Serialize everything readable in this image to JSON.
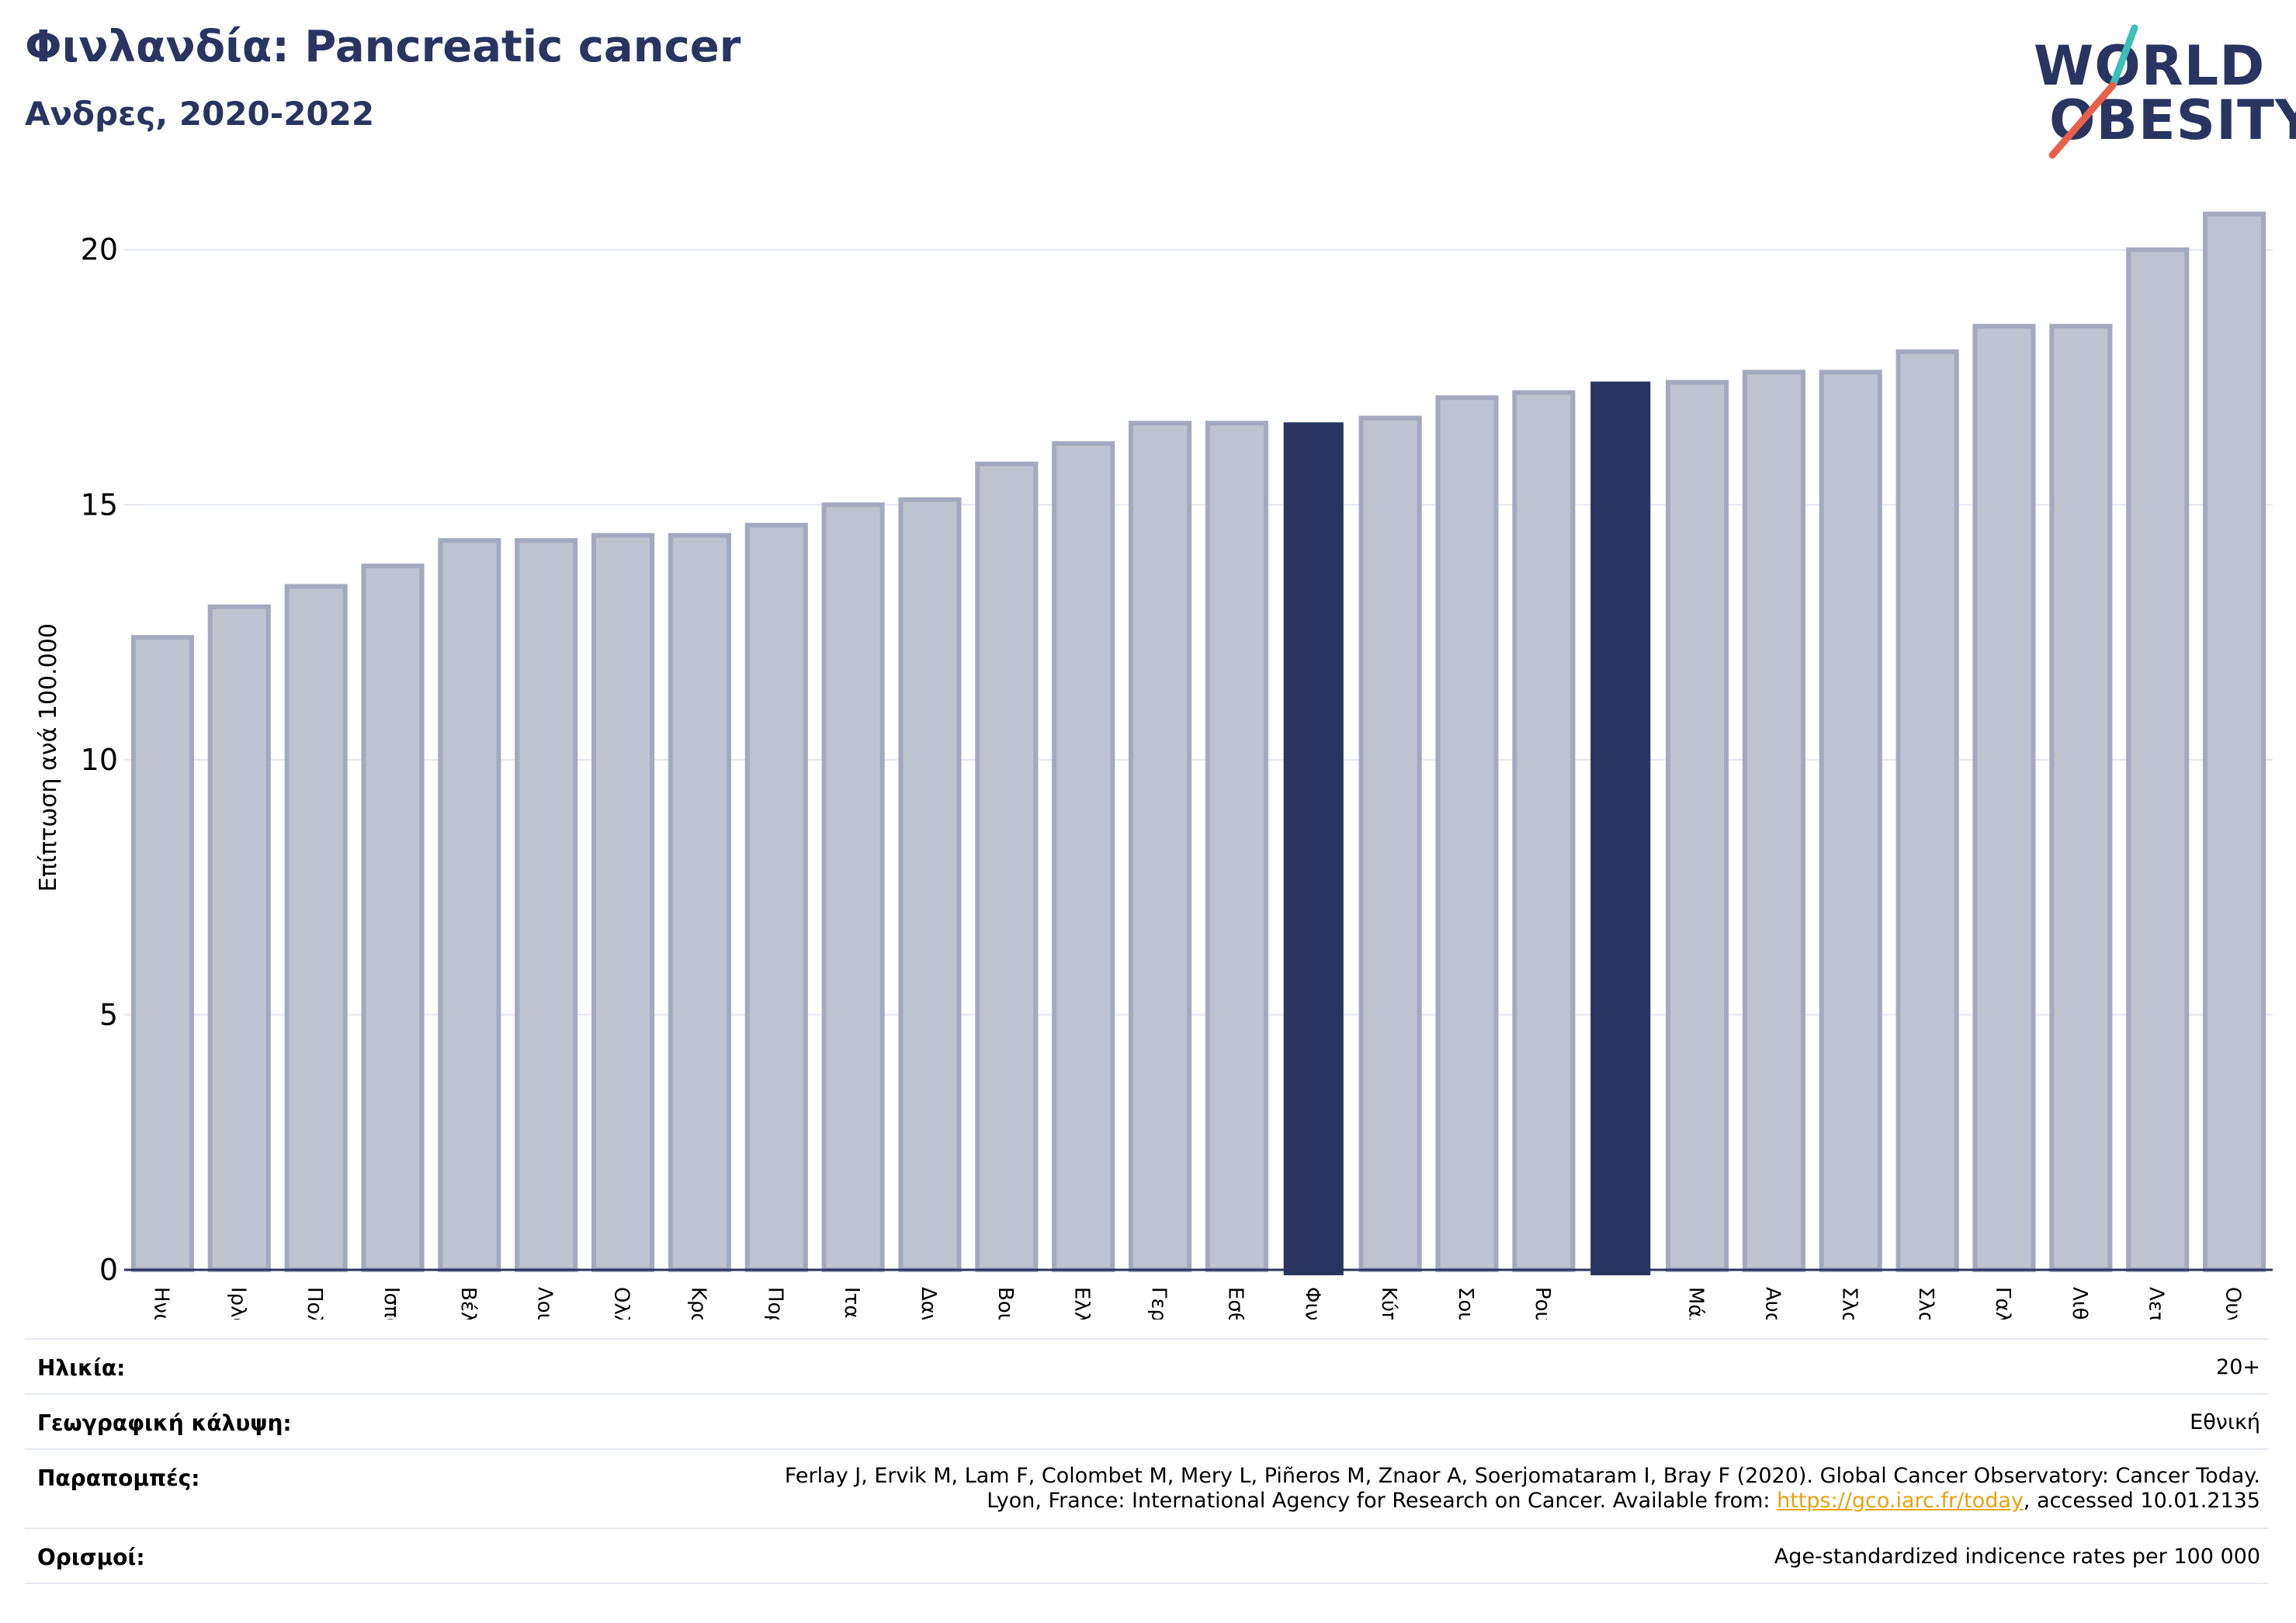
{
  "header": {
    "title": "Φινλανδία: Pancreatic cancer",
    "subtitle": "Ανδρες, 2020-2022"
  },
  "logo": {
    "line1": "WORLD",
    "line2": "OBESITY",
    "slash_colors": [
      "#3bbfb8",
      "#e8604c"
    ]
  },
  "colors": {
    "highlight": "#293560",
    "bar": "#bfc2cf",
    "bar_edge": "#a4a9bf",
    "title": "#293560",
    "link": "#e8a20c"
  },
  "chart_data": {
    "type": "bar",
    "ylabel": "Επίπτωση ανά 100.000",
    "ylim": [
      0,
      21
    ],
    "yticks": [
      0,
      5,
      10,
      15,
      20
    ],
    "grid": true,
    "categories": [
      "Ηνωμένο Βασίλειο",
      "Ιρλανδία",
      "Πολωνία",
      "Ισπανία",
      "Βέλγιο",
      "Λουξεμβούργο",
      "Ολλανδία",
      "Κροατία",
      "Πορτογαλία",
      "Ιταλία",
      "Δανία",
      "Βουλγαρία",
      "Ελλάδα",
      "Γερμανία",
      "Εσθονία",
      "Φινλανδία",
      "Κύπρος",
      "Σουηδία",
      "Ρουμανία",
      "",
      "Μάλτα",
      "Αυστρία",
      "Σλοβενία",
      "Σλοβακία",
      "Γαλλία",
      "Λιθουανία",
      "Λετονία",
      "Ουγγαρία"
    ],
    "values": [
      12.4,
      13.0,
      13.4,
      13.8,
      14.3,
      14.3,
      14.4,
      14.4,
      14.6,
      15.0,
      15.1,
      15.8,
      16.2,
      16.6,
      16.6,
      16.6,
      16.7,
      17.1,
      17.2,
      17.4,
      17.4,
      17.6,
      17.6,
      18.0,
      18.5,
      18.5,
      20.0,
      20.7
    ],
    "highlighted": [
      15,
      19
    ]
  },
  "meta": {
    "age_label": "Ηλικία:",
    "age_value": "20+",
    "coverage_label": "Γεωγραφική κάλυψη:",
    "coverage_value": "Εθνική",
    "refs_label": "Παραπομπές:",
    "refs_line1": "Ferlay J, Ervik M, Lam F, Colombet M, Mery L, Piñeros M, Znaor A, Soerjomataram I, Bray F (2020). Global Cancer Observatory: Cancer Today.",
    "refs_line2_pre": "Lyon, France: International Agency for Research on Cancer. Available from: ",
    "refs_link": "https://gco.iarc.fr/today",
    "refs_line2_post": ", accessed 10.01.2135",
    "defs_label": "Ορισμοί:",
    "defs_value": "Age-standardized indicence rates per 100 000"
  }
}
